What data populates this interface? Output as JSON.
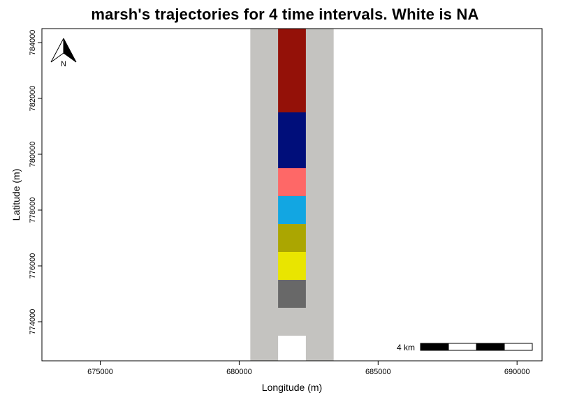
{
  "chart_data": {
    "type": "raster-map",
    "title": "marsh's trajectories for 4 time intervals. White is NA",
    "xlabel": "Longitude (m)",
    "ylabel": "Latitude (m)",
    "xlim": [
      672900,
      690900
    ],
    "ylim": [
      772600,
      784500
    ],
    "x_ticks": [
      675000,
      680000,
      685000,
      690000
    ],
    "y_ticks": [
      774000,
      776000,
      778000,
      780000,
      782000,
      784000
    ],
    "background_band": {
      "x": [
        680400,
        683400
      ],
      "y": [
        772600,
        784500
      ],
      "color": "#c4c3c0"
    },
    "cells": [
      {
        "x": [
          681400,
          682400
        ],
        "y": [
          781500,
          784500
        ],
        "color": "#941108"
      },
      {
        "x": [
          681400,
          682400
        ],
        "y": [
          779500,
          781500
        ],
        "color": "#000e7a"
      },
      {
        "x": [
          681400,
          682400
        ],
        "y": [
          778500,
          779500
        ],
        "color": "#fe6867"
      },
      {
        "x": [
          681400,
          682400
        ],
        "y": [
          777500,
          778500
        ],
        "color": "#12a6e2"
      },
      {
        "x": [
          681400,
          682400
        ],
        "y": [
          776500,
          777500
        ],
        "color": "#aba601"
      },
      {
        "x": [
          681400,
          682400
        ],
        "y": [
          775500,
          776500
        ],
        "color": "#e9e500"
      },
      {
        "x": [
          681400,
          682400
        ],
        "y": [
          774500,
          775500
        ],
        "color": "#686868"
      },
      {
        "x": [
          681400,
          682400
        ],
        "y": [
          772600,
          773500
        ],
        "color": "#ffffff"
      }
    ],
    "scale_bar": {
      "label": "4 km",
      "segments": 4,
      "length_m": 4000
    },
    "north_arrow": {
      "label": "N"
    },
    "grid": false
  }
}
